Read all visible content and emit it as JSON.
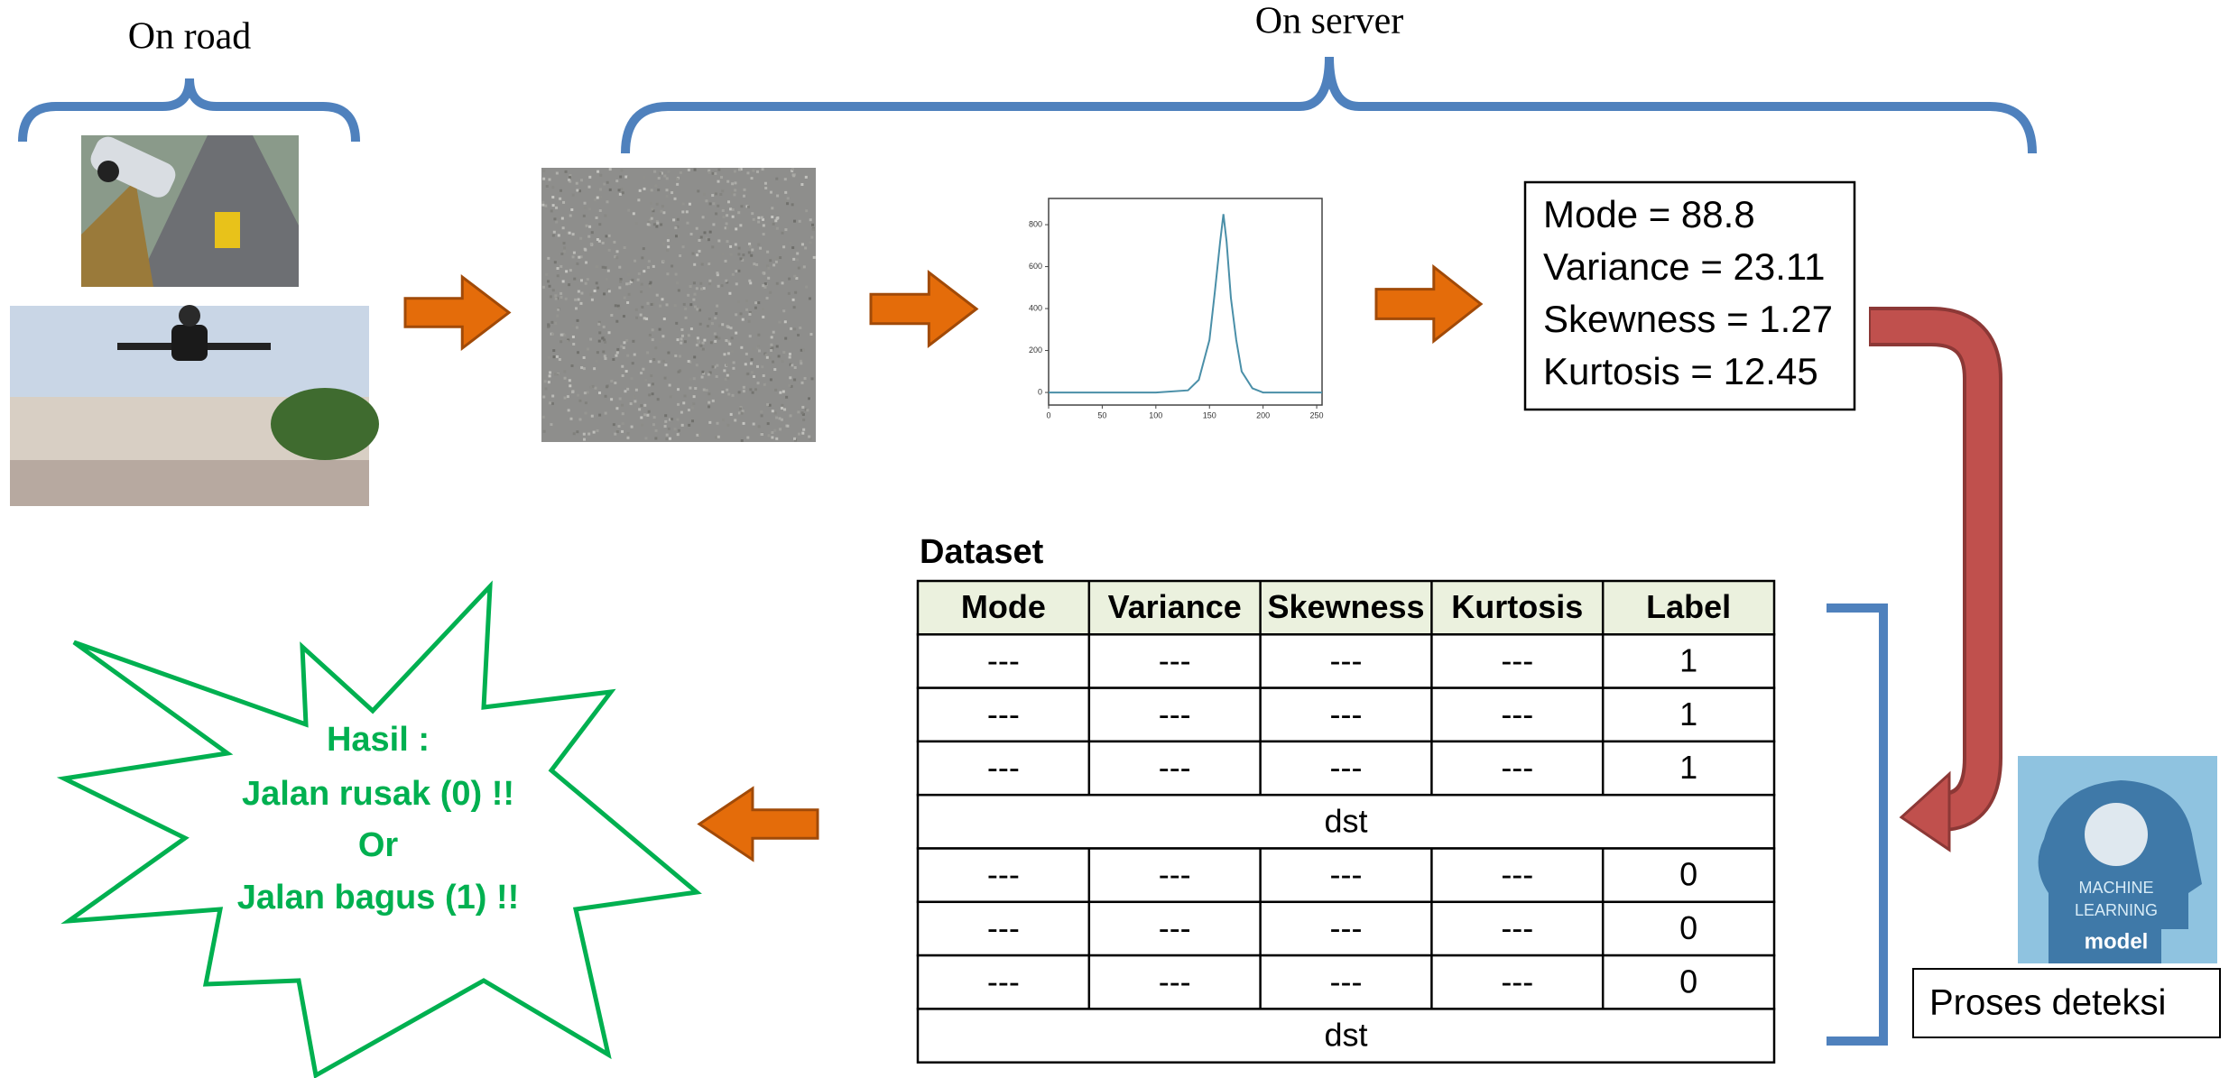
{
  "header": {
    "on_road": "On road",
    "on_server": "On server"
  },
  "histogram": {
    "type": "line",
    "x": [
      0,
      100,
      130,
      140,
      150,
      155,
      160,
      163,
      166,
      170,
      175,
      180,
      190,
      200,
      255
    ],
    "values": [
      0,
      0,
      10,
      60,
      250,
      480,
      720,
      850,
      720,
      450,
      250,
      100,
      20,
      0,
      0
    ],
    "color": "#4a8fa8",
    "xlim": [
      0,
      255
    ],
    "ylim": [
      -60,
      925
    ],
    "xticks": [
      0,
      50,
      100,
      150,
      200,
      250
    ],
    "yticks": [
      0,
      200,
      400,
      600,
      800
    ]
  },
  "stats": [
    "Mode = 88.8",
    "Variance = 23.11",
    "Skewness = 1.27",
    "Kurtosis = 12.45"
  ],
  "dataset": {
    "title": "Dataset",
    "columns": [
      "Mode",
      "Variance",
      "Skewness",
      "Kurtosis",
      "Label"
    ],
    "rows": [
      [
        "---",
        "---",
        "---",
        "---",
        1
      ],
      [
        "---",
        "---",
        "---",
        "---",
        1
      ],
      [
        "---",
        "---",
        "---",
        "---",
        1
      ],
      [
        "dst"
      ],
      [
        "---",
        "---",
        "---",
        "---",
        0
      ],
      [
        "---",
        "---",
        "---",
        "---",
        0
      ],
      [
        "---",
        "---",
        "---",
        "---",
        0
      ],
      [
        "dst"
      ]
    ]
  },
  "result": {
    "lines": [
      "Hasil :",
      "Jalan rusak (0) !!",
      "Or",
      "Jalan bagus (1) !!"
    ]
  },
  "model": {
    "image_text": [
      "MACHINE",
      "LEARNING",
      "model"
    ],
    "label": "Proses deteksi"
  }
}
